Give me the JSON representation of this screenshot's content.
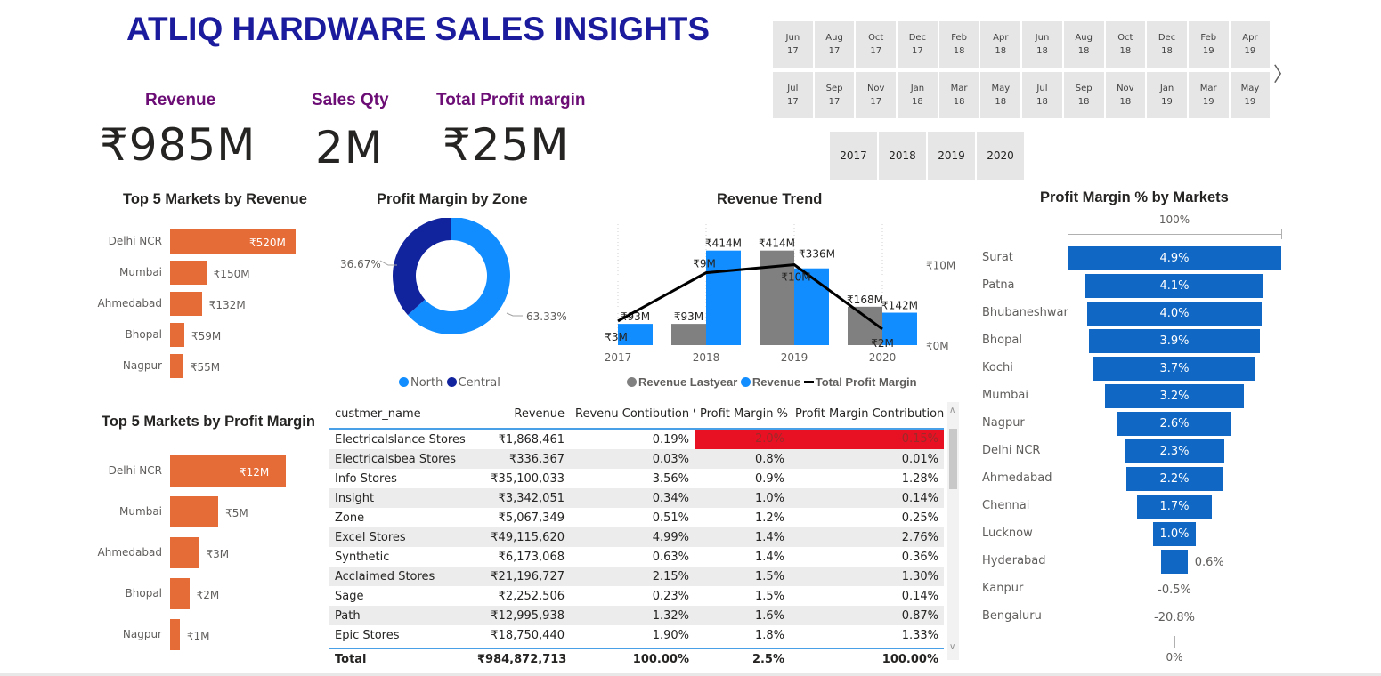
{
  "header": {
    "title": "ATLIQ HARDWARE SALES INSIGHTS"
  },
  "kpis": [
    {
      "label": "Revenue",
      "value": "₹985M"
    },
    {
      "label": "Sales Qty",
      "value": "2M"
    },
    {
      "label": "Total Profit margin",
      "value": "₹25M"
    }
  ],
  "month_slicer": {
    "row1": [
      {
        "m": "Jun",
        "y": "17"
      },
      {
        "m": "Aug",
        "y": "17"
      },
      {
        "m": "Oct",
        "y": "17"
      },
      {
        "m": "Dec",
        "y": "17"
      },
      {
        "m": "Feb",
        "y": "18"
      },
      {
        "m": "Apr",
        "y": "18"
      },
      {
        "m": "Jun",
        "y": "18"
      },
      {
        "m": "Aug",
        "y": "18"
      },
      {
        "m": "Oct",
        "y": "18"
      },
      {
        "m": "Dec",
        "y": "18"
      },
      {
        "m": "Feb",
        "y": "19"
      },
      {
        "m": "Apr",
        "y": "19"
      }
    ],
    "row2": [
      {
        "m": "Jul",
        "y": "17"
      },
      {
        "m": "Sep",
        "y": "17"
      },
      {
        "m": "Nov",
        "y": "17"
      },
      {
        "m": "Jan",
        "y": "18"
      },
      {
        "m": "Mar",
        "y": "18"
      },
      {
        "m": "May",
        "y": "18"
      },
      {
        "m": "Jul",
        "y": "18"
      },
      {
        "m": "Sep",
        "y": "18"
      },
      {
        "m": "Nov",
        "y": "18"
      },
      {
        "m": "Jan",
        "y": "19"
      },
      {
        "m": "Mar",
        "y": "19"
      },
      {
        "m": "May",
        "y": "19"
      }
    ],
    "next_icon": "chevron-right-icon",
    "next_glyph": "〉"
  },
  "year_slicer": [
    "2017",
    "2018",
    "2019",
    "2020"
  ],
  "chart_data": [
    {
      "id": "top5-revenue",
      "type": "bar",
      "orientation": "horizontal",
      "title": "Top 5 Markets by Revenue",
      "categories": [
        "Delhi NCR",
        "Mumbai",
        "Ahmedabad",
        "Bhopal",
        "Nagpur"
      ],
      "values": [
        520,
        150,
        132,
        59,
        55
      ],
      "labels": [
        "₹520M",
        "₹150M",
        "₹132M",
        "₹59M",
        "₹55M"
      ],
      "unit": "₹M",
      "color": "#e66c37"
    },
    {
      "id": "top5-profit",
      "type": "bar",
      "orientation": "horizontal",
      "title": "Top 5 Markets by Profit Margin",
      "categories": [
        "Delhi NCR",
        "Mumbai",
        "Ahmedabad",
        "Bhopal",
        "Nagpur"
      ],
      "values": [
        12,
        5,
        3,
        2,
        1
      ],
      "labels": [
        "₹12M",
        "₹5M",
        "₹3M",
        "₹2M",
        "₹1M"
      ],
      "unit": "₹M",
      "color": "#e66c37"
    },
    {
      "id": "zone-donut",
      "type": "pie",
      "donut": true,
      "title": "Profit Margin by Zone",
      "categories": [
        "North",
        "Central"
      ],
      "values": [
        63.33,
        36.67
      ],
      "labels": [
        "63.33%",
        "36.67%"
      ],
      "colors": [
        "#118dff",
        "#12239e"
      ],
      "legend": "bottom"
    },
    {
      "id": "revenue-trend",
      "type": "bar",
      "combo": "bar+line",
      "title": "Revenue Trend",
      "categories": [
        "2017",
        "2018",
        "2019",
        "2020"
      ],
      "series": [
        {
          "name": "Revenue Lastyear",
          "kind": "bar",
          "color": "#808080",
          "values": [
            null,
            93,
            414,
            168
          ],
          "labels": [
            null,
            "₹93M",
            "₹414M",
            "₹168M"
          ]
        },
        {
          "name": "Revenue",
          "kind": "bar",
          "color": "#118dff",
          "values": [
            93,
            414,
            336,
            142
          ],
          "labels": [
            "₹93M",
            "₹414M",
            "₹336M",
            "₹142M"
          ]
        },
        {
          "name": "Total Profit Margin",
          "kind": "line",
          "color": "#000000",
          "axis": "secondary",
          "values": [
            3,
            9,
            10,
            2
          ],
          "labels": [
            "₹3M",
            "₹9M",
            "₹10M",
            "₹2M"
          ]
        }
      ],
      "y_primary_range": [
        0,
        440
      ],
      "y_secondary_ticks": [
        "₹0M",
        "₹10M"
      ],
      "y_secondary_range": [
        0,
        12.5
      ],
      "legend": "bottom"
    },
    {
      "id": "funnel",
      "type": "bar",
      "subtype": "funnel",
      "title": "Profit Margin % by Markets",
      "top_label": "100%",
      "bottom_label": "0%",
      "categories": [
        "Surat",
        "Patna",
        "Bhubaneshwar",
        "Bhopal",
        "Kochi",
        "Mumbai",
        "Nagpur",
        "Delhi NCR",
        "Ahmedabad",
        "Chennai",
        "Lucknow",
        "Hyderabad",
        "Kanpur",
        "Bengaluru"
      ],
      "values": [
        4.9,
        4.1,
        4.0,
        3.9,
        3.7,
        3.2,
        2.6,
        2.3,
        2.2,
        1.7,
        1.0,
        0.6,
        -0.5,
        -20.8
      ],
      "labels": [
        "4.9%",
        "4.1%",
        "4.0%",
        "3.9%",
        "3.7%",
        "3.2%",
        "2.6%",
        "2.3%",
        "2.2%",
        "1.7%",
        "1.0%",
        "0.6%",
        "-0.5%",
        "-20.8%"
      ],
      "color": "#1168c4"
    }
  ],
  "table": {
    "columns": [
      "custmer_name",
      "Revenue",
      "Revenu Contibution %",
      "Profit Margin %",
      "Profit Margin Contribution"
    ],
    "sorted_column": "Profit Margin %",
    "rows": [
      [
        "Electricalslance Stores",
        "₹1,868,461",
        "0.19%",
        "-2.0%",
        "-0.15%"
      ],
      [
        "Electricalsbea Stores",
        "₹336,367",
        "0.03%",
        "0.8%",
        "0.01%"
      ],
      [
        "Info Stores",
        "₹35,100,033",
        "3.56%",
        "0.9%",
        "1.28%"
      ],
      [
        "Insight",
        "₹3,342,051",
        "0.34%",
        "1.0%",
        "0.14%"
      ],
      [
        "Zone",
        "₹5,067,349",
        "0.51%",
        "1.2%",
        "0.25%"
      ],
      [
        "Excel Stores",
        "₹49,115,620",
        "4.99%",
        "1.4%",
        "2.76%"
      ],
      [
        "Synthetic",
        "₹6,173,068",
        "0.63%",
        "1.4%",
        "0.36%"
      ],
      [
        "Acclaimed Stores",
        "₹21,196,727",
        "2.15%",
        "1.5%",
        "1.30%"
      ],
      [
        "Sage",
        "₹2,252,506",
        "0.23%",
        "1.5%",
        "0.14%"
      ],
      [
        "Path",
        "₹12,995,938",
        "1.32%",
        "1.6%",
        "0.87%"
      ],
      [
        "Epic Stores",
        "₹18,750,440",
        "1.90%",
        "1.8%",
        "1.33%"
      ]
    ],
    "total": [
      "Total",
      "₹984,872,713",
      "100.00%",
      "2.5%",
      "100.00%"
    ],
    "negative_color": "#e81123"
  }
}
